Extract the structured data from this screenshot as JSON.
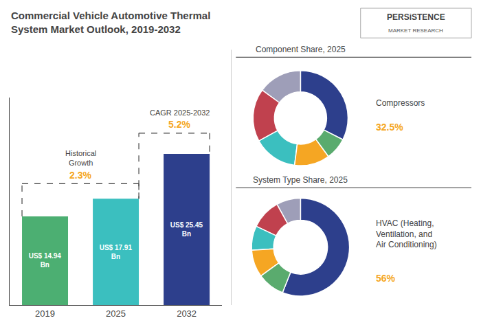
{
  "chart_data": [
    {
      "type": "bar",
      "title": "Commercial Vehicle Automotive Thermal\nSystem Market Outlook, 2019-2032",
      "categories": [
        "2019",
        "2025",
        "2032"
      ],
      "values": [
        14.94,
        17.91,
        25.45
      ],
      "value_labels": [
        "US$ 14.94\nBn",
        "US$ 17.91\nBn",
        "US$ 25.45\nBn"
      ],
      "data_labels": true,
      "colors": [
        "#4caf72",
        "#3bbfbf",
        "#2d3f8c"
      ],
      "ylim": [
        0,
        35
      ],
      "yticks": [],
      "tick_labels": "x",
      "grid": false,
      "annotations": [
        {
          "text": "Historical\nGrowth"
        },
        {
          "text": "2.3%",
          "color": "#f5a623"
        },
        {
          "text": "CAGR 2025-2032"
        },
        {
          "text": "5.2%",
          "color": "#f5a623"
        },
        {
          "text": "PERSiSTENCE"
        },
        {
          "text": "MARKET RESEARCH"
        }
      ]
    },
    {
      "type": "pie",
      "title": "Component Share, 2025",
      "values": [
        32.5,
        15,
        18,
        15,
        12,
        7.5
      ],
      "colors": [
        "#2d3f8c",
        "#9e9eb8",
        "#c0414e",
        "#3bbfbf",
        "#f5a623",
        "#5aab6e"
      ],
      "annotations": [
        {
          "text": "Compressors"
        },
        {
          "text": "32.5%",
          "color": "#f5a623"
        }
      ]
    },
    {
      "type": "pie",
      "title": "System Type Share, 2025",
      "values": [
        56,
        8,
        10,
        8,
        9,
        9
      ],
      "colors": [
        "#2d3f8c",
        "#9e9eb8",
        "#c0414e",
        "#3bbfbf",
        "#f5a623",
        "#5aab6e"
      ],
      "annotations": [
        {
          "text": "HVAC (Heating,\nVentilation, and\nAir Conditioning)"
        },
        {
          "text": "56%",
          "color": "#f5a623"
        }
      ]
    }
  ]
}
